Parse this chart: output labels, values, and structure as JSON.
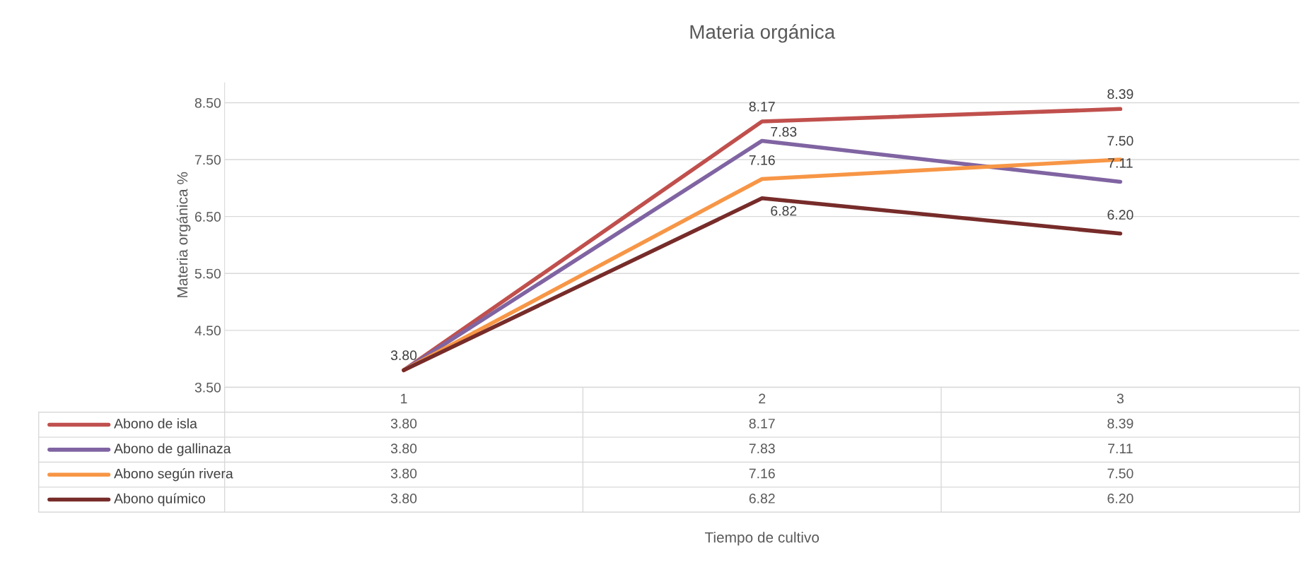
{
  "chart_data": {
    "type": "line",
    "title": "Materia orgánica",
    "ylabel": "Materia orgánica %",
    "annotations": [
      "Tiempo de cultivo",
      "3.80",
      "8.17",
      "8.39",
      "3.80",
      "7.83",
      "7.11",
      "3.80",
      "7.16",
      "7.50",
      "3.80",
      "6.82",
      "6.20"
    ],
    "categories": [
      "1",
      "2",
      "3"
    ],
    "series": [
      {
        "name": "Abono de isla",
        "color": "#c0504d",
        "values": [
          3.8,
          8.17,
          8.39
        ],
        "value_labels": [
          "3.80",
          "8.17",
          "8.39"
        ]
      },
      {
        "name": "Abono de gallinaza",
        "color": "#8064a2",
        "values": [
          3.8,
          7.83,
          7.11
        ],
        "value_labels": [
          null,
          "7.83",
          "7.11"
        ]
      },
      {
        "name": "Abono según rivera",
        "color": "#f79646",
        "values": [
          3.8,
          7.16,
          7.5
        ],
        "value_labels": [
          null,
          "7.16",
          "7.50"
        ]
      },
      {
        "name": "Abono químico",
        "color": "#772c2a",
        "values": [
          3.8,
          6.82,
          6.2
        ],
        "value_labels": [
          null,
          "6.82",
          "6.20"
        ]
      }
    ],
    "ylim": [
      3.5,
      8.85
    ],
    "yticks": [
      {
        "value": 3.5,
        "label": "3.50"
      },
      {
        "value": 4.5,
        "label": "4.50"
      },
      {
        "value": 5.5,
        "label": "5.50"
      },
      {
        "value": 6.5,
        "label": "6.50"
      },
      {
        "value": 7.5,
        "label": "7.50"
      },
      {
        "value": 8.5,
        "label": "8.50"
      }
    ],
    "grid": "y",
    "legend": "bottom",
    "marker": "none",
    "line_style": "solid"
  }
}
